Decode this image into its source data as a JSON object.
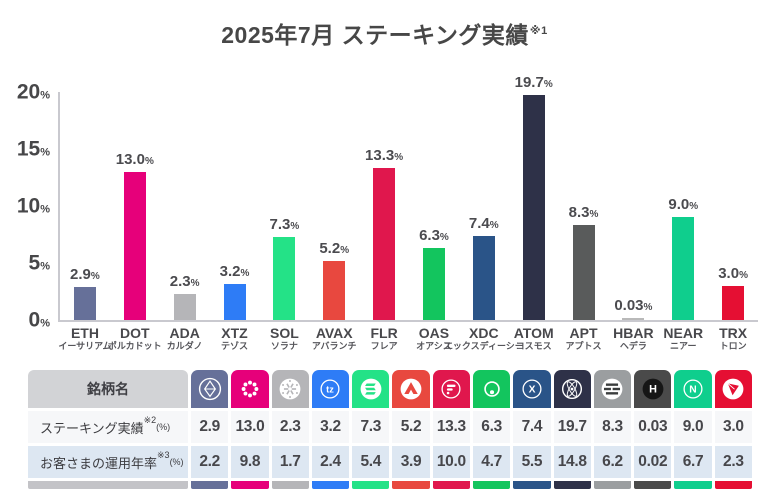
{
  "title": {
    "text": "2025年7月 ステーキング実績",
    "sup": "※1"
  },
  "chart_data": {
    "type": "bar",
    "title": "2025年7月 ステーキング実績※1",
    "categories": [
      "ETH",
      "DOT",
      "ADA",
      "XTZ",
      "SOL",
      "AVAX",
      "FLR",
      "OAS",
      "XDC",
      "ATOM",
      "APT",
      "HBAR",
      "NEAR",
      "TRX"
    ],
    "categories_ja": [
      "イーサリアム",
      "ポルカドット",
      "カルダノ",
      "テゾス",
      "ソラナ",
      "アバランチ",
      "フレア",
      "オアシス",
      "エックスディーシー",
      "コスモス",
      "アプトス",
      "ヘデラ",
      "ニアー",
      "トロン"
    ],
    "values": [
      2.9,
      13.0,
      2.3,
      3.2,
      7.3,
      5.2,
      13.3,
      6.3,
      7.4,
      19.7,
      8.3,
      0.03,
      9.0,
      3.0
    ],
    "value_labels": [
      "2.9",
      "13.0",
      "2.3",
      "3.2",
      "7.3",
      "5.2",
      "13.3",
      "6.3",
      "7.4",
      "19.7",
      "8.3",
      "0.03",
      "9.0",
      "3.0"
    ],
    "value_unit": "%",
    "bar_colors": [
      "#667099",
      "#e6007a",
      "#b5b5b8",
      "#2e7cf6",
      "#24e287",
      "#e8483f",
      "#e0174d",
      "#13c55e",
      "#2a5488",
      "#2e3148",
      "#595b5b",
      "#b9b9b9",
      "#0fce8d",
      "#e50f33"
    ],
    "ylabel": "",
    "xlabel": "",
    "ylim": [
      0,
      20
    ],
    "yticks": [
      0,
      5,
      10,
      15,
      20
    ],
    "ytick_unit": "%",
    "grid": false,
    "legend": false
  },
  "table": {
    "header_label": "銘柄名",
    "rows": [
      {
        "label": "ステーキング実績",
        "sup": "※2",
        "unit": "(%)"
      },
      {
        "label": "お客さまの運用年率",
        "sup": "※3",
        "unit": "(%)"
      }
    ],
    "columns": [
      {
        "symbol": "ETH",
        "icon": "ethereum-icon",
        "bg": "#667099",
        "staking": "2.9",
        "annual": "2.2"
      },
      {
        "symbol": "DOT",
        "icon": "polkadot-icon",
        "bg": "#e6007a",
        "staking": "13.0",
        "annual": "9.8"
      },
      {
        "symbol": "ADA",
        "icon": "cardano-icon",
        "bg": "#b5b5b8",
        "staking": "2.3",
        "annual": "1.7"
      },
      {
        "symbol": "XTZ",
        "icon": "tezos-icon",
        "bg": "#2e7cf6",
        "staking": "3.2",
        "annual": "2.4"
      },
      {
        "symbol": "SOL",
        "icon": "solana-icon",
        "bg": "#24e287",
        "staking": "7.3",
        "annual": "5.4"
      },
      {
        "symbol": "AVAX",
        "icon": "avalanche-icon",
        "bg": "#e8483f",
        "staking": "5.2",
        "annual": "3.9"
      },
      {
        "symbol": "FLR",
        "icon": "flare-icon",
        "bg": "#e0174d",
        "staking": "13.3",
        "annual": "10.0"
      },
      {
        "symbol": "OAS",
        "icon": "oasys-icon",
        "bg": "#13c55e",
        "staking": "6.3",
        "annual": "4.7"
      },
      {
        "symbol": "XDC",
        "icon": "xdc-icon",
        "bg": "#2a5488",
        "staking": "7.4",
        "annual": "5.5"
      },
      {
        "symbol": "ATOM",
        "icon": "cosmos-icon",
        "bg": "#2e3148",
        "staking": "19.7",
        "annual": "14.8"
      },
      {
        "symbol": "APT",
        "icon": "aptos-icon",
        "bg": "#9b9ea0",
        "staking": "8.3",
        "annual": "6.2"
      },
      {
        "symbol": "HBAR",
        "icon": "hedera-icon",
        "bg": "#4a4a4a",
        "staking": "0.03",
        "annual": "0.02"
      },
      {
        "symbol": "NEAR",
        "icon": "near-icon",
        "bg": "#0fce8d",
        "staking": "9.0",
        "annual": "6.7"
      },
      {
        "symbol": "TRX",
        "icon": "tron-icon",
        "bg": "#e50f33",
        "staking": "3.0",
        "annual": "2.3"
      }
    ],
    "label_strip_color": "#c3c3c7",
    "row1_bg": "#f6f7f9",
    "row2_bg": "#dde7f2"
  }
}
